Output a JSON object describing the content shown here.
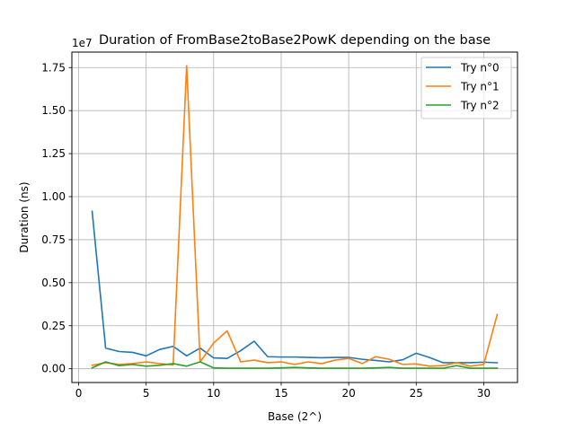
{
  "chart_data": {
    "type": "line",
    "title": "Duration of FromBase2toBase2PowK depending on the base",
    "xlabel": "Base (2^)",
    "ylabel": "Duration (ns)",
    "offset_label": "1e7",
    "xlim": [
      -0.5,
      32.5
    ],
    "ylim": [
      -0.08,
      1.84
    ],
    "xticks": [
      0,
      5,
      10,
      15,
      20,
      25,
      30
    ],
    "xtick_labels": [
      "0",
      "5",
      "10",
      "15",
      "20",
      "25",
      "30"
    ],
    "yticks": [
      0,
      0.25,
      0.5,
      0.75,
      1.0,
      1.25,
      1.5,
      1.75
    ],
    "ytick_labels": [
      "0.00",
      "0.25",
      "0.50",
      "0.75",
      "1.00",
      "1.25",
      "1.50",
      "1.75"
    ],
    "grid": true,
    "legend_position": "top-right",
    "x": [
      1,
      2,
      3,
      4,
      5,
      6,
      7,
      8,
      9,
      10,
      11,
      12,
      13,
      14,
      15,
      16,
      17,
      18,
      19,
      20,
      21,
      22,
      23,
      24,
      25,
      26,
      27,
      28,
      29,
      30,
      31
    ],
    "series": [
      {
        "name": "Try n°0",
        "color": "#1f77b4",
        "values": [
          0.915,
          0.12,
          0.1,
          0.095,
          0.075,
          0.112,
          0.13,
          0.075,
          0.12,
          0.063,
          0.06,
          0.105,
          0.16,
          0.07,
          0.068,
          0.068,
          0.066,
          0.064,
          0.066,
          0.066,
          0.055,
          0.048,
          0.04,
          0.052,
          0.09,
          0.065,
          0.035,
          0.035,
          0.035,
          0.038,
          0.035
        ]
      },
      {
        "name": "Try n°1",
        "color": "#ff7f0e",
        "values": [
          0.02,
          0.035,
          0.025,
          0.03,
          0.04,
          0.03,
          0.022,
          1.76,
          0.04,
          0.15,
          0.22,
          0.04,
          0.05,
          0.035,
          0.04,
          0.025,
          0.04,
          0.03,
          0.05,
          0.06,
          0.03,
          0.07,
          0.055,
          0.025,
          0.028,
          0.015,
          0.018,
          0.035,
          0.015,
          0.025,
          0.315
        ]
      },
      {
        "name": "Try n°2",
        "color": "#2ca02c",
        "values": [
          0.005,
          0.04,
          0.018,
          0.025,
          0.015,
          0.02,
          0.03,
          0.015,
          0.04,
          0.005,
          0.003,
          0.003,
          0.003,
          0.003,
          0.005,
          0.008,
          0.005,
          0.003,
          0.003,
          0.003,
          0.003,
          0.005,
          0.008,
          0.003,
          0.003,
          0.003,
          0.003,
          0.018,
          0.003,
          0.003,
          0.003
        ]
      }
    ]
  }
}
